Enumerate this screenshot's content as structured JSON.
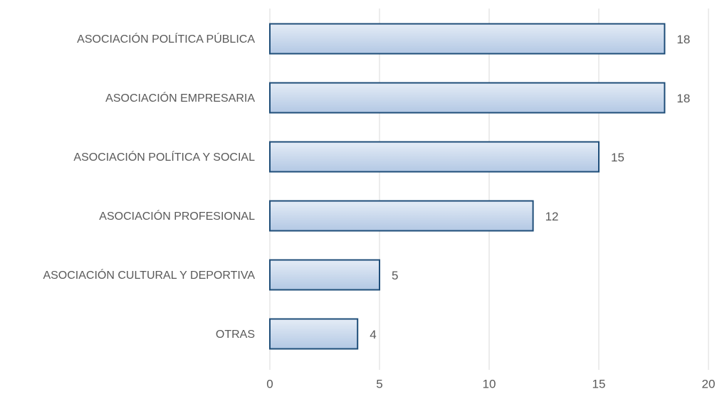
{
  "chart_data": {
    "type": "barh",
    "categories": [
      "ASOCIACIÓN POLÍTICA PÚBLICA",
      "ASOCIACIÓN EMPRESARIA",
      "ASOCIACIÓN POLÍTICA Y SOCIAL",
      "ASOCIACIÓN PROFESIONAL",
      "ASOCIACIÓN CULTURAL Y DEPORTIVA",
      "OTRAS"
    ],
    "values": [
      18,
      18,
      15,
      12,
      5,
      4
    ],
    "color": "#1f4e79",
    "xlim": [
      0,
      20
    ],
    "xticks": [
      0,
      5,
      10,
      15,
      20
    ],
    "grid": true
  }
}
